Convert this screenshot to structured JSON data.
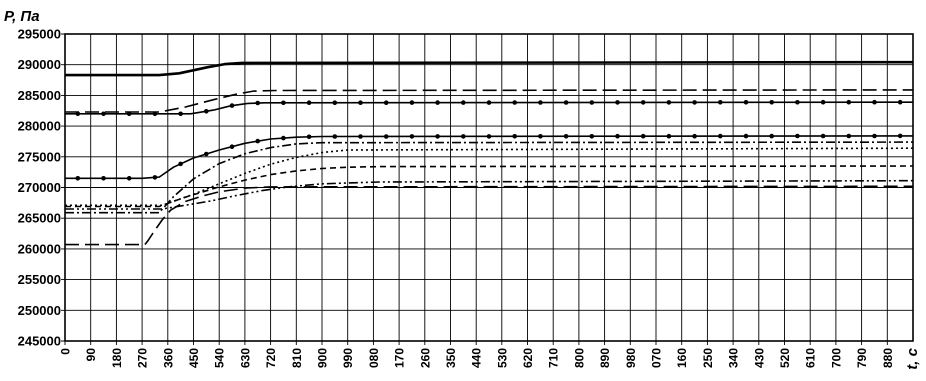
{
  "caption": "",
  "chart_data": {
    "type": "line",
    "title": "",
    "ylabel": "P, Па",
    "xlabel": "t, c",
    "ylim": [
      245000,
      295000
    ],
    "xlim": [
      0,
      2970
    ],
    "grid": true,
    "y_ticks": [
      295000,
      290000,
      285000,
      280000,
      275000,
      270000,
      265000,
      260000,
      255000,
      250000,
      245000
    ],
    "x_ticks": [
      0,
      90,
      180,
      270,
      360,
      450,
      540,
      630,
      720,
      810,
      900,
      990,
      1080,
      1170,
      1260,
      1350,
      1440,
      1530,
      1620,
      1710,
      1800,
      1890,
      1980,
      2070,
      2160,
      2250,
      2340,
      2430,
      2520,
      2610,
      2700,
      2790,
      2880
    ],
    "x_tick_labels": [
      "0",
      "90",
      "180",
      "270",
      "360",
      "450",
      "540",
      "630",
      "720",
      "810",
      "900",
      "990",
      "080",
      "170",
      "260",
      "350",
      "440",
      "530",
      "620",
      "710",
      "800",
      "890",
      "980",
      "070",
      "160",
      "250",
      "340",
      "430",
      "520",
      "610",
      "700",
      "790",
      "880"
    ],
    "series": [
      {
        "style": "solid-thick",
        "color": "#000000",
        "x": [
          0,
          330,
          400,
          500,
          560,
          620,
          2970
        ],
        "y": [
          288300,
          288300,
          288600,
          289600,
          290100,
          290300,
          290400
        ]
      },
      {
        "style": "long-dash",
        "color": "#000000",
        "x": [
          0,
          330,
          420,
          520,
          600,
          660,
          740,
          2970
        ],
        "y": [
          282300,
          282300,
          283100,
          284300,
          285200,
          285700,
          285800,
          285900
        ]
      },
      {
        "style": "solid-dots",
        "color": "#000000",
        "x": [
          0,
          340,
          440,
          520,
          580,
          640,
          700,
          2970
        ],
        "y": [
          282000,
          282000,
          282000,
          282600,
          283300,
          283700,
          283800,
          283900
        ]
      },
      {
        "style": "solid-dots",
        "color": "#000000",
        "x": [
          0,
          270,
          330,
          380,
          450,
          540,
          630,
          720,
          810,
          900,
          2970
        ],
        "y": [
          271500,
          271500,
          271700,
          273300,
          274800,
          276100,
          277200,
          277900,
          278200,
          278300,
          278400
        ]
      },
      {
        "style": "dash-dot",
        "color": "#000000",
        "x": [
          0,
          330,
          380,
          450,
          540,
          630,
          720,
          810,
          900,
          2970
        ],
        "y": [
          265900,
          265900,
          268500,
          271400,
          273900,
          275500,
          276500,
          277100,
          277300,
          277400
        ]
      },
      {
        "style": "dotted",
        "color": "#000000",
        "x": [
          0,
          340,
          450,
          540,
          630,
          720,
          810,
          900,
          990,
          2970
        ],
        "y": [
          267100,
          267100,
          268900,
          270600,
          272300,
          273800,
          274900,
          275700,
          276100,
          276400
        ]
      },
      {
        "style": "dashed",
        "color": "#000000",
        "x": [
          0,
          330,
          420,
          540,
          630,
          720,
          810,
          900,
          990,
          1100,
          2970
        ],
        "y": [
          266900,
          266900,
          268400,
          270100,
          271200,
          272100,
          272700,
          273100,
          273300,
          273400,
          273500
        ]
      },
      {
        "style": "long-dash",
        "color": "#000000",
        "x": [
          0,
          280,
          290,
          310,
          340,
          370,
          420,
          480,
          540,
          630,
          720,
          2970
        ],
        "y": [
          260700,
          260700,
          261300,
          262700,
          264700,
          266300,
          267700,
          268600,
          269300,
          269900,
          270100,
          270200
        ]
      },
      {
        "style": "dash-dot-dot",
        "color": "#000000",
        "x": [
          0,
          340,
          420,
          510,
          600,
          690,
          780,
          900,
          1100,
          2970
        ],
        "y": [
          266500,
          266500,
          267100,
          267800,
          268700,
          269500,
          270100,
          270600,
          270900,
          271100
        ]
      }
    ]
  }
}
